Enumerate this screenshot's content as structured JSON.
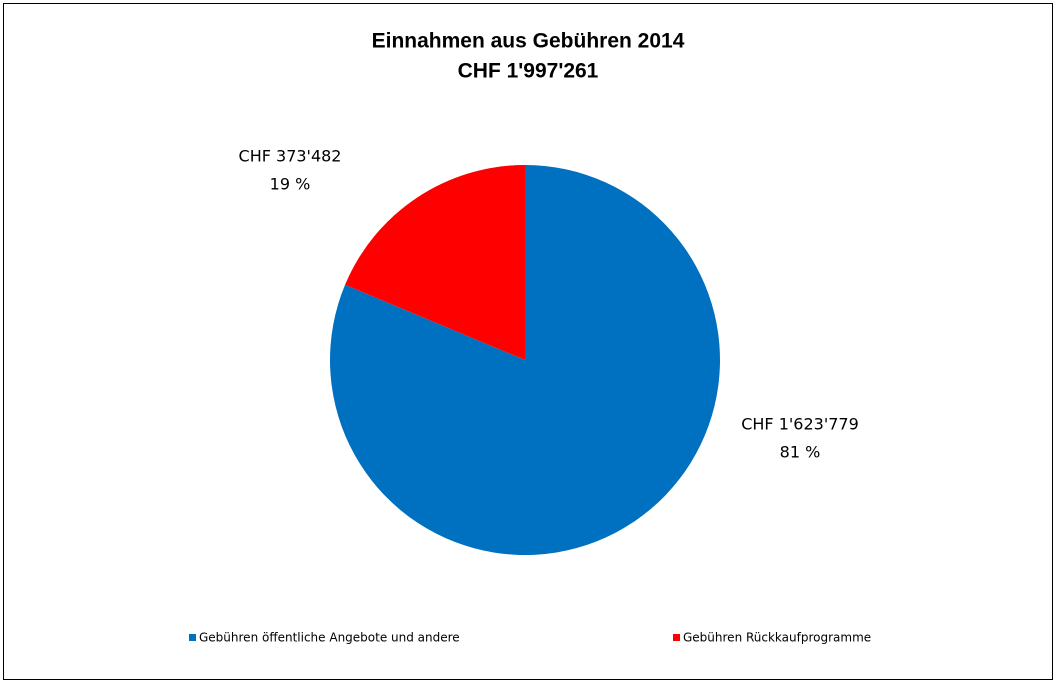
{
  "chart_data": {
    "type": "pie",
    "title": "Einnahmen aus Gebühren 2014",
    "subtitle": "CHF 1'997'261",
    "categories": [
      "Gebühren öffentliche Angebote und andere",
      "Gebühren Rückkaufprogramme"
    ],
    "values": [
      1623779,
      373482
    ],
    "value_labels": [
      "CHF 1'623'779",
      "CHF 373'482"
    ],
    "percent_labels": [
      "81 %",
      "19 %"
    ],
    "colors": [
      "#0070c0",
      "#ff0000"
    ],
    "legend": "bottom"
  }
}
